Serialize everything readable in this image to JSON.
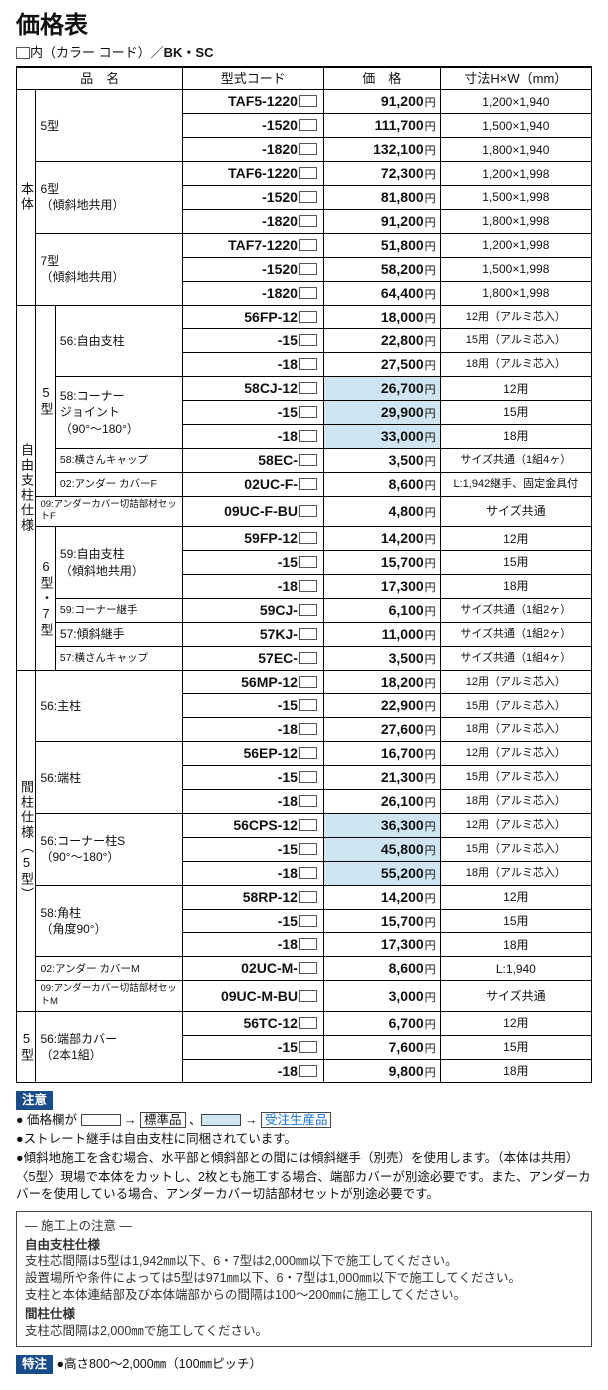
{
  "header": {
    "title": "価格表",
    "sub_left": "内（カラー コード）／",
    "sub_bold": "BK・SC"
  },
  "columns": {
    "c1": "品　名",
    "c2": "型式コード",
    "c3": "価　格",
    "c4": "寸法H×W（mm）"
  },
  "groups": {
    "g0": "本体",
    "g1": "自由支柱仕様",
    "g2": "間柱仕様（5型）",
    "g3": "5型"
  },
  "rows": [
    {
      "g": 0,
      "sg": "5型",
      "sg_rows": 3,
      "name": "5型",
      "code": "TAF5-1220",
      "price": "91,200",
      "ph": 1,
      "hl": 0,
      "size": "1,200×1,940"
    },
    {
      "g": 0,
      "code": "-1520",
      "price": "111,700",
      "ph": 1,
      "hl": 0,
      "size": "1,500×1,940"
    },
    {
      "g": 0,
      "code": "-1820",
      "price": "132,100",
      "ph": 1,
      "hl": 0,
      "size": "1,800×1,940"
    },
    {
      "g": 0,
      "sg": "6型\n（傾斜地共用）",
      "sg_rows": 3,
      "code": "TAF6-1220",
      "price": "72,300",
      "ph": 1,
      "hl": 0,
      "size": "1,200×1,998"
    },
    {
      "g": 0,
      "code": "-1520",
      "price": "81,800",
      "ph": 1,
      "hl": 0,
      "size": "1,500×1,998"
    },
    {
      "g": 0,
      "code": "-1820",
      "price": "91,200",
      "ph": 1,
      "hl": 0,
      "size": "1,800×1,998"
    },
    {
      "g": 0,
      "sg": "7型\n（傾斜地共用）",
      "sg_rows": 3,
      "code": "TAF7-1220",
      "price": "51,800",
      "ph": 1,
      "hl": 0,
      "size": "1,200×1,998"
    },
    {
      "g": 0,
      "code": "-1520",
      "price": "58,200",
      "ph": 1,
      "hl": 0,
      "size": "1,500×1,998"
    },
    {
      "g": 0,
      "code": "-1820",
      "price": "64,400",
      "ph": 1,
      "hl": 0,
      "size": "1,800×1,998"
    },
    {
      "g": 1,
      "sub": "5型",
      "sub_rows": 8,
      "sg": "56:自由支柱",
      "sg_rows": 3,
      "code": "56FP-12",
      "price": "18,000",
      "ph": 1,
      "hl": 0,
      "size": "12用（アルミ芯入）",
      "ssm": 1
    },
    {
      "g": 1,
      "code": "-15",
      "price": "22,800",
      "ph": 1,
      "hl": 0,
      "size": "15用（アルミ芯入）",
      "ssm": 1
    },
    {
      "g": 1,
      "code": "-18",
      "price": "27,500",
      "ph": 1,
      "hl": 0,
      "size": "18用（アルミ芯入）",
      "ssm": 1
    },
    {
      "g": 1,
      "sg": "58:コーナー\nジョイント\n（90°～180°）",
      "sg_rows": 3,
      "code": "58CJ-12",
      "price": "26,700",
      "ph": 1,
      "hl": 1,
      "size": "12用"
    },
    {
      "g": 1,
      "code": "-15",
      "price": "29,900",
      "ph": 1,
      "hl": 1,
      "size": "15用"
    },
    {
      "g": 1,
      "code": "-18",
      "price": "33,000",
      "ph": 1,
      "hl": 1,
      "size": "18用"
    },
    {
      "g": 1,
      "sg": "58:横さんキャップ",
      "sg_rows": 1,
      "nsm": 1,
      "code": "58EC-",
      "price": "3,500",
      "ph": 1,
      "hl": 0,
      "size": "サイズ共通（1組4ヶ）",
      "ssm": 1
    },
    {
      "g": 1,
      "sg": "02:アンダー カバーF",
      "sg_rows": 1,
      "nsm": 1,
      "code": "02UC-F-",
      "price": "8,600",
      "ph": 1,
      "hl": 0,
      "size": "L:1,942継手、固定金具付",
      "ssm": 1
    },
    {
      "g": 1,
      "nosub": 1,
      "sg": "09:アンダーカバー切詰部材セットF",
      "sg_rows": 1,
      "nxs": 1,
      "code": "09UC-F-BU",
      "price": "4,800",
      "ph": 1,
      "hl": 0,
      "size": "サイズ共通"
    },
    {
      "g": 1,
      "sub": "6型・7型",
      "sub_rows": 6,
      "sg": "59:自由支柱\n（傾斜地共用）",
      "sg_rows": 3,
      "code": "59FP-12",
      "price": "14,200",
      "ph": 1,
      "hl": 0,
      "size": "12用"
    },
    {
      "g": 1,
      "code": "-15",
      "price": "15,700",
      "ph": 1,
      "hl": 0,
      "size": "15用"
    },
    {
      "g": 1,
      "code": "-18",
      "price": "17,300",
      "ph": 1,
      "hl": 0,
      "size": "18用"
    },
    {
      "g": 1,
      "sg": "59:コーナー継手",
      "sg_rows": 1,
      "nsm": 1,
      "code": "59CJ-",
      "price": "6,100",
      "ph": 1,
      "hl": 0,
      "size": "サイズ共通（1組2ヶ）",
      "ssm": 1
    },
    {
      "g": 1,
      "sg": "57:傾斜継手",
      "sg_rows": 1,
      "code": "57KJ-",
      "price": "11,000",
      "ph": 1,
      "hl": 0,
      "size": "サイズ共通（1組2ヶ）",
      "ssm": 1
    },
    {
      "g": 1,
      "sg": "57:横さんキャップ",
      "sg_rows": 1,
      "nsm": 1,
      "code": "57EC-",
      "price": "3,500",
      "ph": 1,
      "hl": 0,
      "size": "サイズ共通（1組4ヶ）",
      "ssm": 1
    },
    {
      "g": 2,
      "sg": "56:主柱",
      "sg_rows": 3,
      "code": "56MP-12",
      "price": "18,200",
      "ph": 1,
      "hl": 0,
      "size": "12用（アルミ芯入）",
      "ssm": 1
    },
    {
      "g": 2,
      "code": "-15",
      "price": "22,900",
      "ph": 1,
      "hl": 0,
      "size": "15用（アルミ芯入）",
      "ssm": 1
    },
    {
      "g": 2,
      "code": "-18",
      "price": "27,600",
      "ph": 1,
      "hl": 0,
      "size": "18用（アルミ芯入）",
      "ssm": 1
    },
    {
      "g": 2,
      "sg": "56:端柱",
      "sg_rows": 3,
      "code": "56EP-12",
      "price": "16,700",
      "ph": 1,
      "hl": 0,
      "size": "12用（アルミ芯入）",
      "ssm": 1
    },
    {
      "g": 2,
      "code": "-15",
      "price": "21,300",
      "ph": 1,
      "hl": 0,
      "size": "15用（アルミ芯入）",
      "ssm": 1
    },
    {
      "g": 2,
      "code": "-18",
      "price": "26,100",
      "ph": 1,
      "hl": 0,
      "size": "18用（アルミ芯入）",
      "ssm": 1
    },
    {
      "g": 2,
      "sg": "56:コーナー柱S\n（90°～180°）",
      "sg_rows": 3,
      "code": "56CPS-12",
      "price": "36,300",
      "ph": 1,
      "hl": 1,
      "size": "12用（アルミ芯入）",
      "ssm": 1
    },
    {
      "g": 2,
      "code": "-15",
      "price": "45,800",
      "ph": 1,
      "hl": 1,
      "size": "15用（アルミ芯入）",
      "ssm": 1
    },
    {
      "g": 2,
      "code": "-18",
      "price": "55,200",
      "ph": 1,
      "hl": 1,
      "size": "18用（アルミ芯入）",
      "ssm": 1
    },
    {
      "g": 2,
      "sg": "58:角柱\n（角度90°）",
      "sg_rows": 3,
      "code": "58RP-12",
      "price": "14,200",
      "ph": 1,
      "hl": 0,
      "size": "12用"
    },
    {
      "g": 2,
      "code": "-15",
      "price": "15,700",
      "ph": 1,
      "hl": 0,
      "size": "15用"
    },
    {
      "g": 2,
      "code": "-18",
      "price": "17,300",
      "ph": 1,
      "hl": 0,
      "size": "18用"
    },
    {
      "g": 2,
      "sg": "02:アンダー カバーM",
      "sg_rows": 1,
      "nsm": 1,
      "code": "02UC-M-",
      "price": "8,600",
      "ph": 1,
      "hl": 0,
      "size": "L:1,940"
    },
    {
      "g": 2,
      "sg": "09:アンダーカバー切詰部材セットM",
      "sg_rows": 1,
      "nxs": 1,
      "code": "09UC-M-BU",
      "price": "3,000",
      "ph": 1,
      "hl": 0,
      "size": "サイズ共通"
    },
    {
      "g": 3,
      "sg": "56:端部カバー\n（2本1組）",
      "sg_rows": 3,
      "code": "56TC-12",
      "price": "6,700",
      "ph": 1,
      "hl": 0,
      "size": "12用"
    },
    {
      "g": 3,
      "code": "-15",
      "price": "7,600",
      "ph": 1,
      "hl": 0,
      "size": "15用"
    },
    {
      "g": 3,
      "code": "-18",
      "price": "9,800",
      "ph": 1,
      "hl": 0,
      "size": "18用"
    }
  ],
  "notes": {
    "title": "注意",
    "n1a": "価格欄が ",
    "n1b": " → ",
    "n1c": "標準品",
    "n1d": " 、",
    "n1e": " → ",
    "n1f": "受注生産品",
    "n2": "ストレート継手は自由支柱に同梱されています。",
    "n3": "傾斜地施工を含む場合、水平部と傾斜部との間には傾斜継手（別売）を使用します。（本体は共用）",
    "n4": "〈5型〉現場で本体をカットし、2枚とも施工する場合、端部カバーが別途必要です。また、アンダーカバーを使用している場合、アンダーカバー切詰部材セットが別途必要です。"
  },
  "inst": {
    "title": "― 施工上の注意 ―",
    "s1": "自由支柱仕様",
    "l1": "支柱芯間隔は5型は1,942㎜以下、6・7型は2,000㎜以下で施工してください。",
    "l2": "設置場所や条件によっては5型は971㎜以下、6・7型は1,000㎜以下で施工してください。",
    "l3": "支柱と本体連結部及び本体端部からの間隔は100～200㎜に施工してください。",
    "s2": "間柱仕様",
    "l4": "支柱芯間隔は2,000㎜で施工してください。"
  },
  "sp": {
    "label": "特注",
    "text": "●高さ800～2,000㎜（100㎜ピッチ）"
  },
  "style": {
    "highlight_bg": "#cfe5f2",
    "badge_bg": "#1a4c8a"
  }
}
